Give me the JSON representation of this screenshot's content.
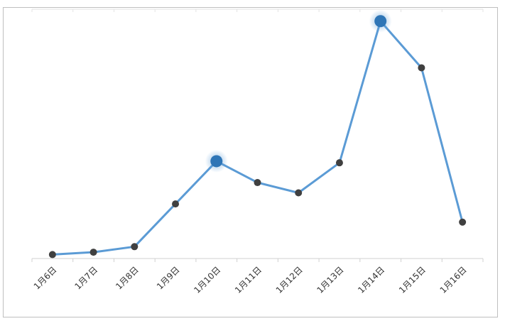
{
  "chart_data": {
    "type": "line",
    "categories": [
      "1月6日",
      "1月7日",
      "1月8日",
      "1月9日",
      "1月10日",
      "1月11日",
      "1月12日",
      "1月13日",
      "1月14日",
      "1月15日",
      "1月16日"
    ],
    "series": [
      {
        "values": [
          0.5,
          0.8,
          1.5,
          6.9,
          12.3,
          9.6,
          8.3,
          12.1,
          30.0,
          24.1,
          4.6
        ],
        "highlighted_points": [
          "1月10日",
          "1月14日"
        ]
      }
    ],
    "title": "",
    "xlabel": "",
    "ylabel": "",
    "ylim": [
      0,
      31.5
    ],
    "grid": false,
    "legend": "none",
    "colors": {
      "line": "#5b9bd5",
      "marker": "#404040",
      "highlight": "#2e75b6",
      "axis": "#d0d0d0"
    }
  }
}
